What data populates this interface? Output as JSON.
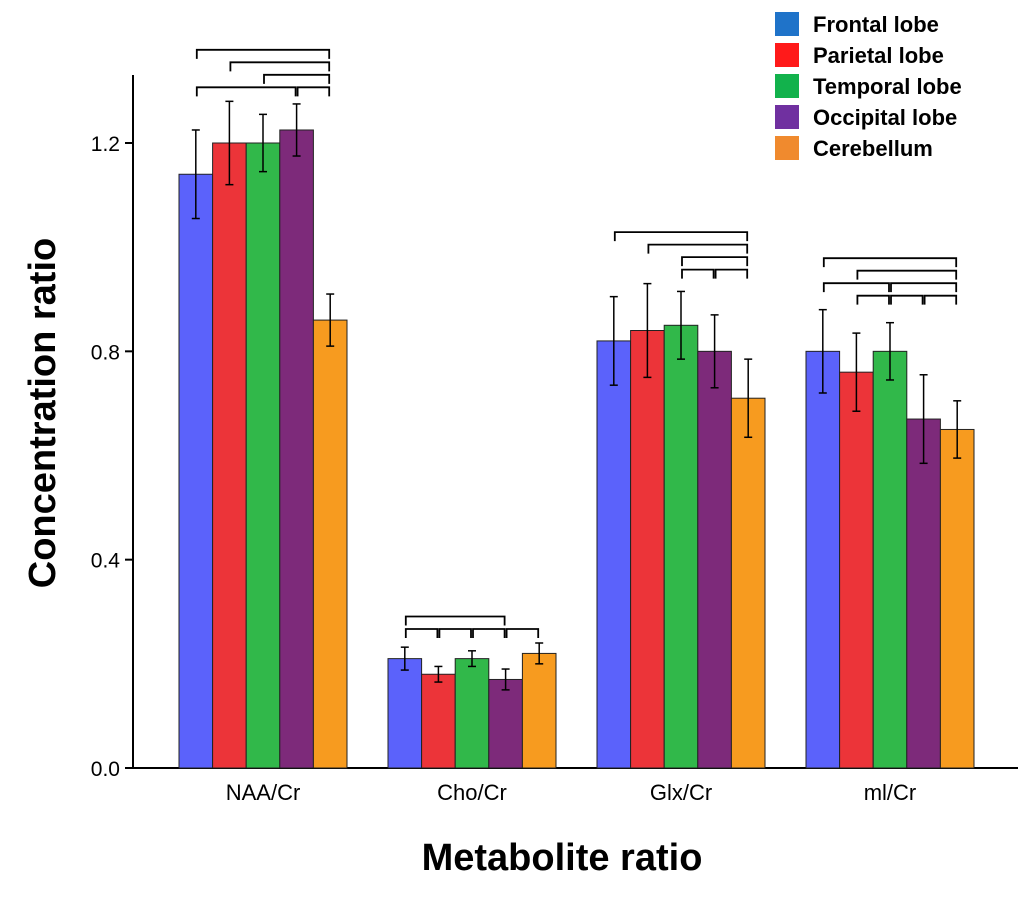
{
  "chart_data": {
    "type": "bar",
    "title": "",
    "xlabel": "Metabolite ratio",
    "ylabel": "Concentration ratio",
    "ylim": [
      0,
      1.3
    ],
    "yticks": [
      0.0,
      0.4,
      0.8,
      1.2
    ],
    "ytick_labels": [
      "0.0",
      "0.4",
      "0.8",
      "1.2"
    ],
    "grid": false,
    "legend_position": "top-right",
    "categories": [
      "NAA/Cr",
      "Cho/Cr",
      "Glx/Cr",
      "mI/Cr"
    ],
    "category_labels": [
      "NAA/Cr",
      "Cho/Cr",
      "Glx/Cr",
      "ml/Cr"
    ],
    "series": [
      {
        "name": "Frontal lobe",
        "legend_color": "#1f73c9",
        "bar_color": "#5b62fb",
        "values": [
          1.14,
          0.21,
          0.82,
          0.8
        ],
        "errors": [
          0.085,
          0.022,
          0.085,
          0.08
        ]
      },
      {
        "name": "Parietal lobe",
        "legend_color": "#ff1a1a",
        "bar_color": "#ec3439",
        "values": [
          1.2,
          0.18,
          0.84,
          0.76
        ],
        "errors": [
          0.08,
          0.015,
          0.09,
          0.075
        ]
      },
      {
        "name": "Temporal lobe",
        "legend_color": "#12b24c",
        "bar_color": "#31b84a",
        "values": [
          1.2,
          0.21,
          0.85,
          0.8
        ],
        "errors": [
          0.055,
          0.015,
          0.065,
          0.055
        ]
      },
      {
        "name": "Occipital lobe",
        "legend_color": "#7030a0",
        "bar_color": "#7d2a7a",
        "values": [
          1.225,
          0.17,
          0.8,
          0.67
        ],
        "errors": [
          0.05,
          0.02,
          0.07,
          0.085
        ]
      },
      {
        "name": "Cerebellum",
        "legend_color": "#f08a2e",
        "bar_color": "#f79b1f",
        "values": [
          0.86,
          0.22,
          0.71,
          0.65
        ],
        "errors": [
          0.05,
          0.02,
          0.075,
          0.055
        ]
      }
    ],
    "significance_brackets": [
      {
        "category": 0,
        "pairs": [
          [
            0,
            4
          ],
          [
            0,
            3
          ],
          [
            1,
            4
          ],
          [
            2,
            4
          ],
          [
            3,
            4
          ]
        ]
      },
      {
        "category": 1,
        "pairs": [
          [
            0,
            3
          ],
          [
            0,
            1
          ],
          [
            1,
            2
          ],
          [
            2,
            3
          ],
          [
            3,
            4
          ]
        ]
      },
      {
        "category": 2,
        "pairs": [
          [
            0,
            4
          ],
          [
            1,
            4
          ],
          [
            2,
            4
          ],
          [
            2,
            3
          ],
          [
            3,
            4
          ]
        ]
      },
      {
        "category": 3,
        "pairs": [
          [
            0,
            4
          ],
          [
            1,
            4
          ],
          [
            2,
            4
          ],
          [
            0,
            2
          ],
          [
            1,
            2
          ],
          [
            2,
            3
          ],
          [
            3,
            4
          ]
        ]
      }
    ],
    "annotations": []
  }
}
